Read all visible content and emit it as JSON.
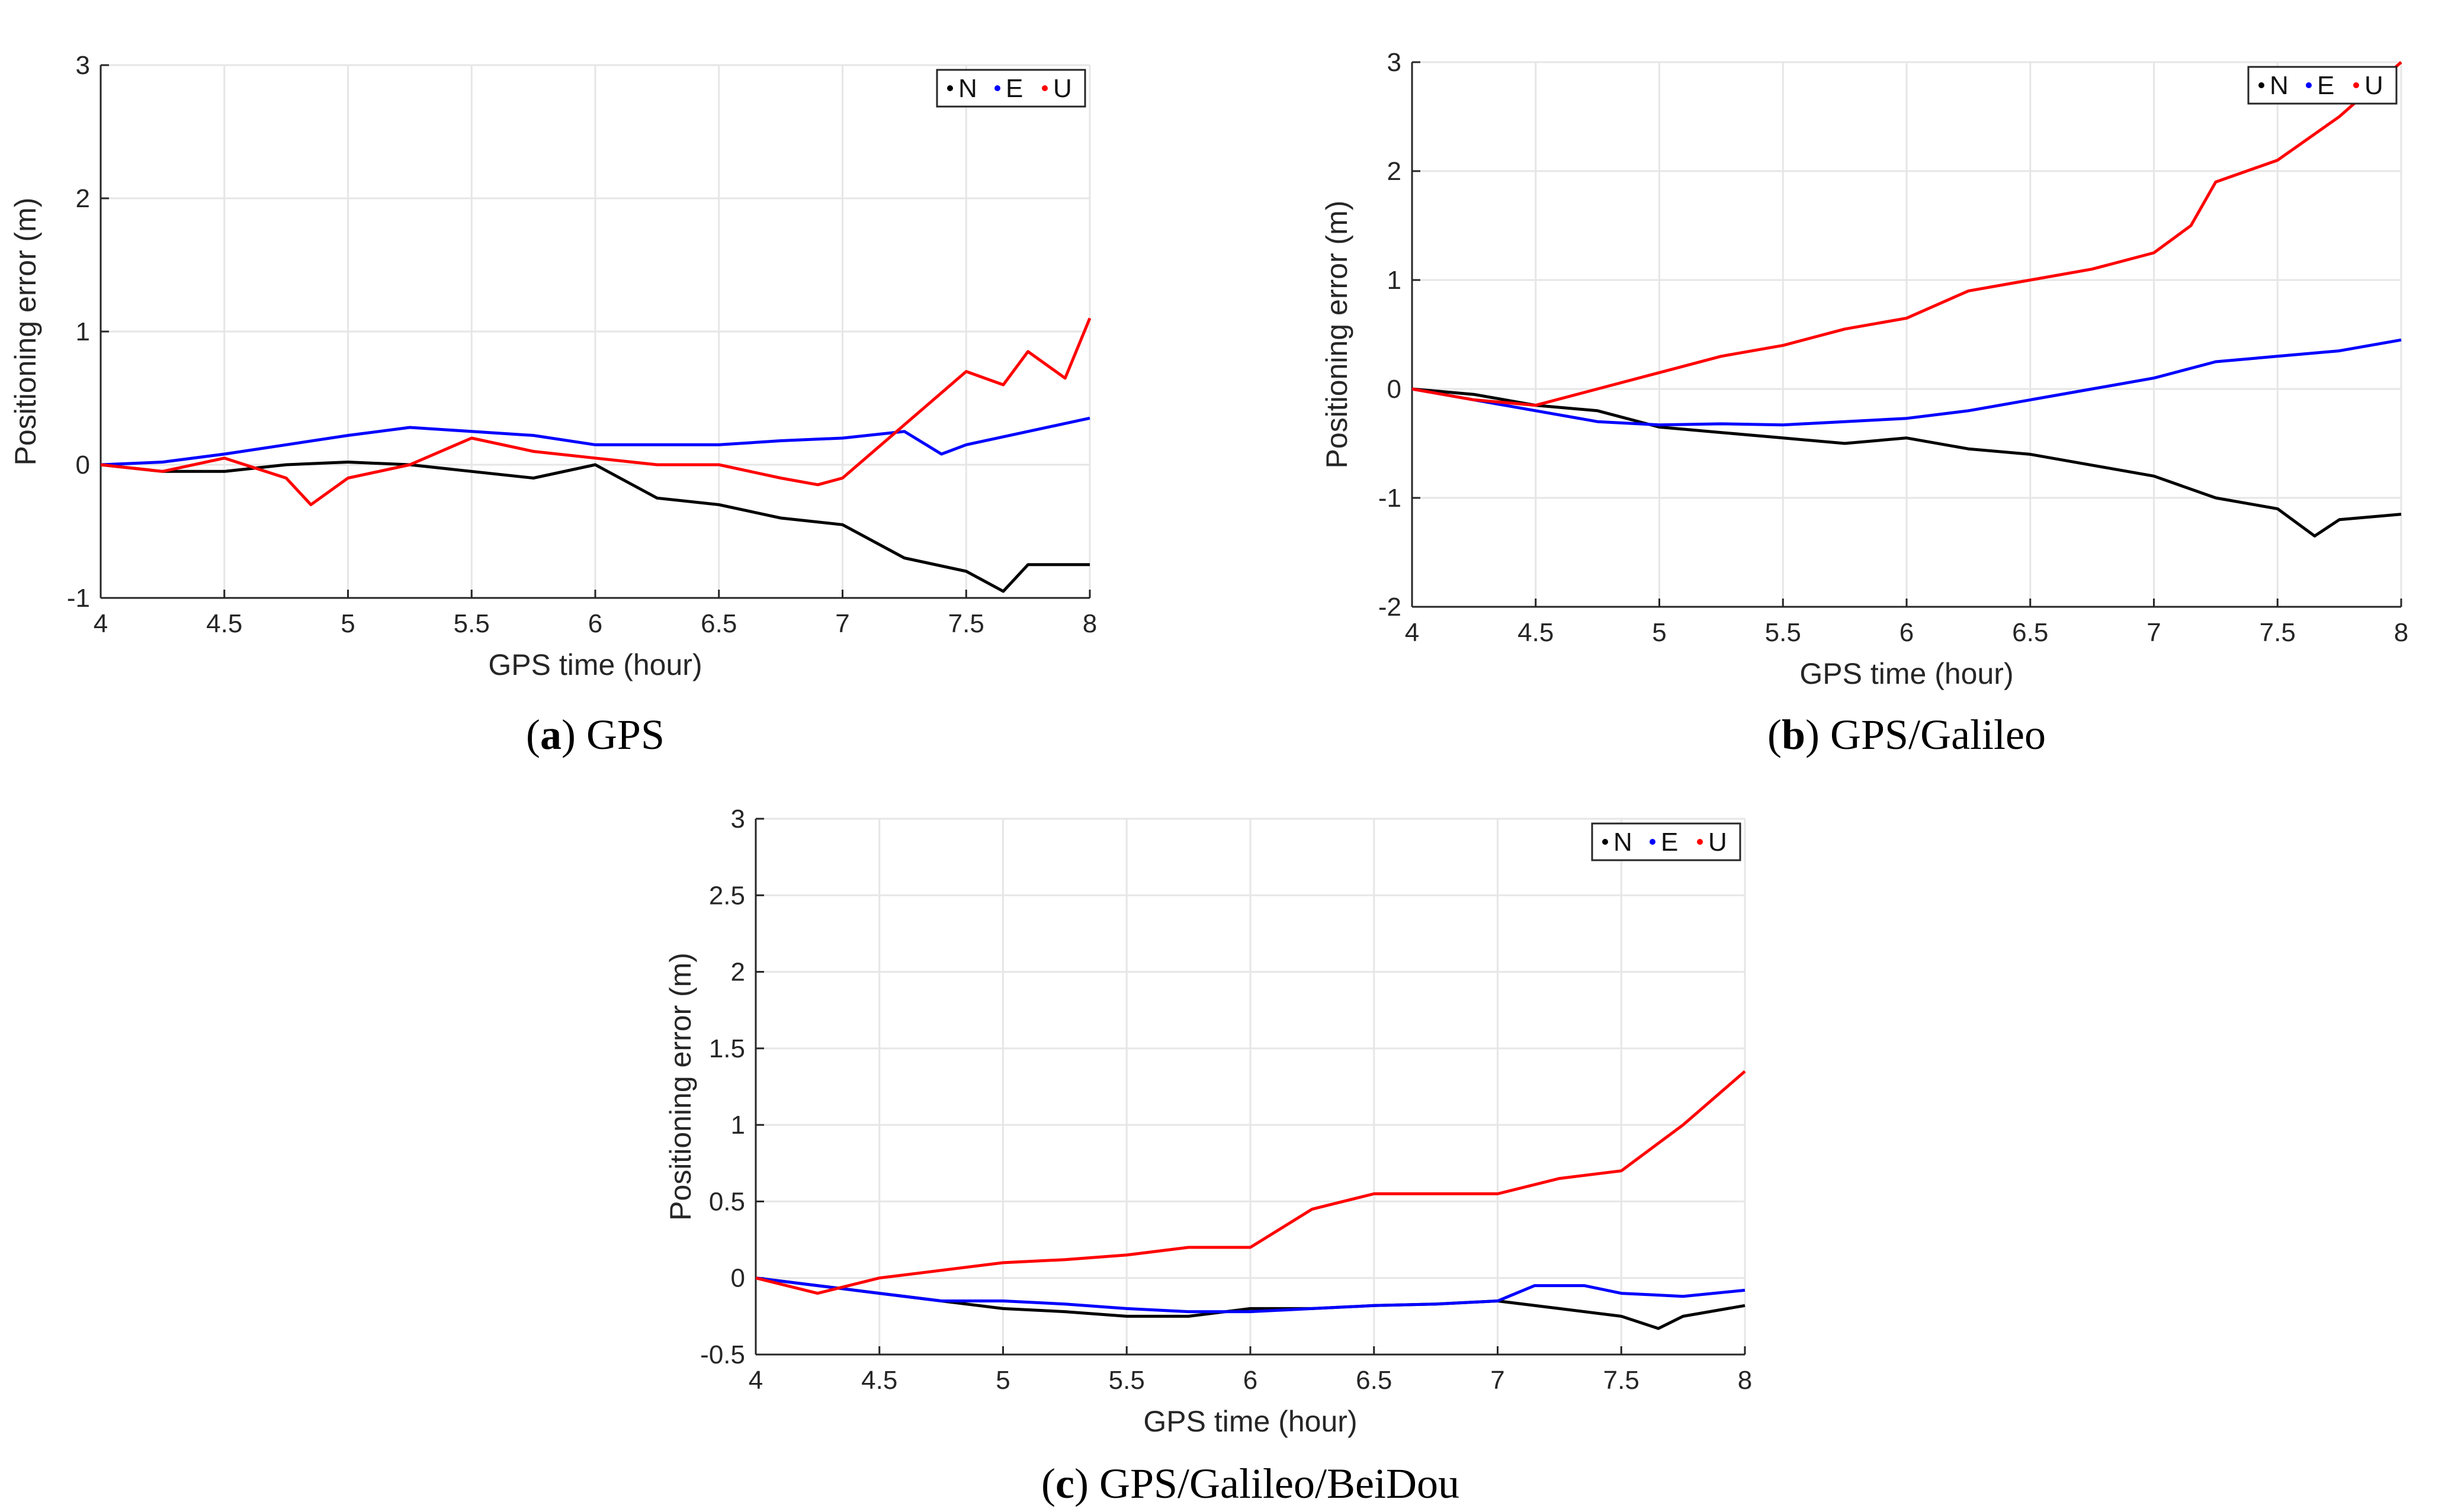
{
  "colors": {
    "N": "#000000",
    "E": "#0000ff",
    "U": "#ff0000"
  },
  "chart_data": [
    {
      "type": "line",
      "panel_letter": "a",
      "caption_text": "GPS",
      "xlabel": "GPS time (hour)",
      "ylabel": "Positioning error (m)",
      "xlim": [
        4,
        8
      ],
      "ylim": [
        -1,
        3
      ],
      "xticks": [
        4,
        4.5,
        5,
        5.5,
        6,
        6.5,
        7,
        7.5,
        8
      ],
      "yticks": [
        -1,
        0,
        1,
        2,
        3
      ],
      "grid": true,
      "legend": {
        "position": "top-right",
        "entries": [
          "N",
          "E",
          "U"
        ]
      },
      "series": [
        {
          "name": "N",
          "x": [
            4,
            4.25,
            4.5,
            4.75,
            5,
            5.25,
            5.5,
            5.75,
            6,
            6.25,
            6.5,
            6.75,
            7,
            7.25,
            7.5,
            7.65,
            7.75,
            8
          ],
          "y": [
            0,
            -0.05,
            -0.05,
            0,
            0.02,
            0,
            -0.05,
            -0.1,
            0,
            -0.25,
            -0.3,
            -0.4,
            -0.45,
            -0.7,
            -0.8,
            -0.95,
            -0.75,
            -0.75
          ]
        },
        {
          "name": "E",
          "x": [
            4,
            4.25,
            4.5,
            4.75,
            5,
            5.25,
            5.5,
            5.75,
            6,
            6.25,
            6.5,
            6.75,
            7,
            7.25,
            7.4,
            7.5,
            7.75,
            8
          ],
          "y": [
            0,
            0.02,
            0.08,
            0.15,
            0.22,
            0.28,
            0.25,
            0.22,
            0.15,
            0.15,
            0.15,
            0.18,
            0.2,
            0.25,
            0.08,
            0.15,
            0.25,
            0.35
          ]
        },
        {
          "name": "U",
          "x": [
            4,
            4.25,
            4.5,
            4.75,
            4.85,
            5,
            5.25,
            5.5,
            5.75,
            6,
            6.25,
            6.5,
            6.75,
            6.9,
            7,
            7.25,
            7.5,
            7.65,
            7.75,
            7.9,
            8
          ],
          "y": [
            0,
            -0.05,
            0.05,
            -0.1,
            -0.3,
            -0.1,
            0,
            0.2,
            0.1,
            0.05,
            0,
            0,
            -0.1,
            -0.15,
            -0.1,
            0.3,
            0.7,
            0.6,
            0.85,
            0.65,
            1.1
          ]
        }
      ]
    },
    {
      "type": "line",
      "panel_letter": "b",
      "caption_text": "GPS/Galileo",
      "xlabel": "GPS time (hour)",
      "ylabel": "Positioning error (m)",
      "xlim": [
        4,
        8
      ],
      "ylim": [
        -2,
        3
      ],
      "xticks": [
        4,
        4.5,
        5,
        5.5,
        6,
        6.5,
        7,
        7.5,
        8
      ],
      "yticks": [
        -2,
        -1,
        0,
        1,
        2,
        3
      ],
      "grid": true,
      "legend": {
        "position": "top-right",
        "entries": [
          "N",
          "E",
          "U"
        ]
      },
      "series": [
        {
          "name": "N",
          "x": [
            4,
            4.25,
            4.5,
            4.75,
            5,
            5.25,
            5.5,
            5.75,
            6,
            6.25,
            6.5,
            6.75,
            7,
            7.25,
            7.5,
            7.65,
            7.75,
            8
          ],
          "y": [
            0,
            -0.05,
            -0.15,
            -0.2,
            -0.35,
            -0.4,
            -0.45,
            -0.5,
            -0.45,
            -0.55,
            -0.6,
            -0.7,
            -0.8,
            -1.0,
            -1.1,
            -1.35,
            -1.2,
            -1.15
          ]
        },
        {
          "name": "E",
          "x": [
            4,
            4.25,
            4.5,
            4.75,
            5,
            5.25,
            5.5,
            5.75,
            6,
            6.25,
            6.5,
            6.75,
            7,
            7.25,
            7.5,
            7.75,
            8
          ],
          "y": [
            0,
            -0.1,
            -0.2,
            -0.3,
            -0.33,
            -0.32,
            -0.33,
            -0.3,
            -0.27,
            -0.2,
            -0.1,
            0,
            0.1,
            0.25,
            0.3,
            0.35,
            0.45
          ]
        },
        {
          "name": "U",
          "x": [
            4,
            4.25,
            4.5,
            4.75,
            5,
            5.25,
            5.5,
            5.75,
            6,
            6.25,
            6.5,
            6.75,
            7,
            7.15,
            7.25,
            7.5,
            7.75,
            8
          ],
          "y": [
            0,
            -0.1,
            -0.15,
            0,
            0.15,
            0.3,
            0.4,
            0.55,
            0.65,
            0.9,
            1.0,
            1.1,
            1.25,
            1.5,
            1.9,
            2.1,
            2.5,
            3.0
          ]
        }
      ]
    },
    {
      "type": "line",
      "panel_letter": "c",
      "caption_text": "GPS/Galileo/BeiDou",
      "xlabel": "GPS time (hour)",
      "ylabel": "Positioning error (m)",
      "xlim": [
        4,
        8
      ],
      "ylim": [
        -0.5,
        3
      ],
      "xticks": [
        4,
        4.5,
        5,
        5.5,
        6,
        6.5,
        7,
        7.5,
        8
      ],
      "yticks": [
        -0.5,
        0,
        0.5,
        1,
        1.5,
        2,
        2.5,
        3
      ],
      "grid": true,
      "legend": {
        "position": "top-right",
        "entries": [
          "N",
          "E",
          "U"
        ]
      },
      "series": [
        {
          "name": "N",
          "x": [
            4,
            4.25,
            4.5,
            4.75,
            5,
            5.25,
            5.5,
            5.75,
            6,
            6.25,
            6.5,
            6.75,
            7,
            7.25,
            7.5,
            7.65,
            7.75,
            8
          ],
          "y": [
            0,
            -0.05,
            -0.1,
            -0.15,
            -0.2,
            -0.22,
            -0.25,
            -0.25,
            -0.2,
            -0.2,
            -0.18,
            -0.17,
            -0.15,
            -0.2,
            -0.25,
            -0.33,
            -0.25,
            -0.18
          ]
        },
        {
          "name": "E",
          "x": [
            4,
            4.25,
            4.5,
            4.75,
            5,
            5.25,
            5.5,
            5.75,
            6,
            6.25,
            6.5,
            6.75,
            7,
            7.15,
            7.35,
            7.5,
            7.75,
            8
          ],
          "y": [
            0,
            -0.05,
            -0.1,
            -0.15,
            -0.15,
            -0.17,
            -0.2,
            -0.22,
            -0.22,
            -0.2,
            -0.18,
            -0.17,
            -0.15,
            -0.05,
            -0.05,
            -0.1,
            -0.12,
            -0.08
          ]
        },
        {
          "name": "U",
          "x": [
            4,
            4.25,
            4.5,
            4.75,
            5,
            5.25,
            5.5,
            5.75,
            6,
            6.25,
            6.5,
            6.75,
            7,
            7.25,
            7.5,
            7.75,
            8
          ],
          "y": [
            0,
            -0.1,
            0,
            0.05,
            0.1,
            0.12,
            0.15,
            0.2,
            0.2,
            0.45,
            0.55,
            0.55,
            0.55,
            0.65,
            0.7,
            1.0,
            1.35
          ]
        }
      ]
    }
  ]
}
